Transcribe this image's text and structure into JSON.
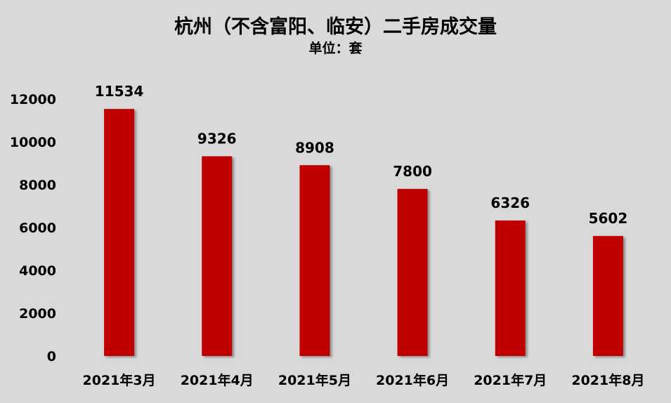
{
  "chart_data": {
    "type": "bar",
    "title": "杭州（不含富阳、临安）二手房成交量",
    "subtitle": "单位：套",
    "xlabel": "",
    "ylabel": "",
    "categories": [
      "2021年3月",
      "2021年4月",
      "2021年5月",
      "2021年6月",
      "2021年7月",
      "2021年8月"
    ],
    "values": [
      11534,
      9326,
      8908,
      7800,
      6326,
      5602
    ],
    "data_labels": [
      "11534",
      "9326",
      "8908",
      "7800",
      "6326",
      "5602"
    ],
    "y_ticks": [
      0,
      2000,
      4000,
      6000,
      8000,
      10000,
      12000
    ],
    "y_tick_labels": [
      "0",
      "2000",
      "4000",
      "6000",
      "8000",
      "10000",
      "12000"
    ],
    "ylim": [
      0,
      12000
    ],
    "grid": false,
    "legend": "none",
    "colors": {
      "bar": "#c00000",
      "background": "#d9d9d9",
      "text": "#000000"
    }
  }
}
